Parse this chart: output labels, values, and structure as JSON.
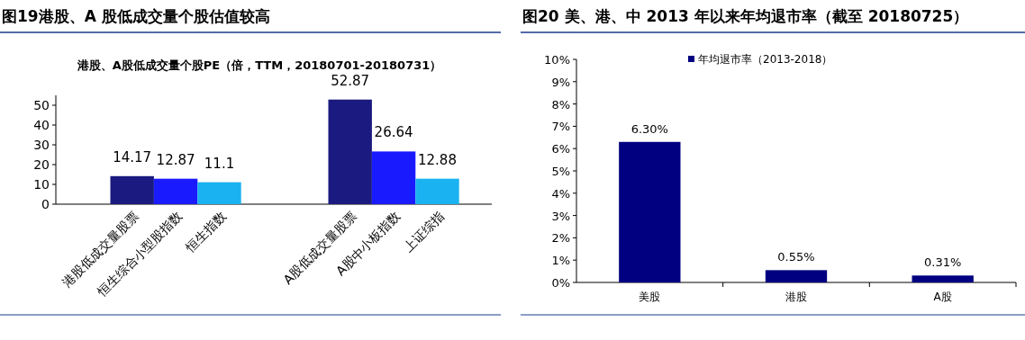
{
  "chart_data": [
    {
      "type": "bar",
      "title": "图19港股、A 股低成交量个股估值较高",
      "subtitle": "港股、A股低成交量个股PE（倍，TTM，20180701-20180731）",
      "categories": [
        "港股低成交量股票",
        "恒生综合小型股指数",
        "恒生指数",
        null,
        null,
        "A股低成交量股票",
        "A股中小板指数",
        "上证综指"
      ],
      "values": [
        14.17,
        12.87,
        11.1,
        null,
        null,
        52.87,
        26.64,
        12.88
      ],
      "colors": [
        "#1a1a80",
        "#1a1aff",
        "#1ab2f0",
        null,
        null,
        "#1a1a80",
        "#1a1aff",
        "#1ab2f0"
      ],
      "ylim": [
        0,
        55
      ],
      "yticks": [
        0,
        10,
        20,
        30,
        40,
        50
      ],
      "data_labels": true
    },
    {
      "type": "bar",
      "title": "图20 美、港、中 2013 年以来年均退市率（截至 20180725）",
      "categories": [
        "美股",
        "港股",
        "A股"
      ],
      "series": [
        {
          "name": "年均退市率（2013-2018）",
          "color": "#000080",
          "values": [
            6.3,
            0.55,
            0.31
          ],
          "value_labels": [
            "6.30%",
            "0.55%",
            "0.31%"
          ]
        }
      ],
      "ylim": [
        0,
        10
      ],
      "yticks": [
        {
          "value": 0,
          "label": "0%"
        },
        {
          "value": 1,
          "label": "1%"
        },
        {
          "value": 2,
          "label": "2%"
        },
        {
          "value": 3,
          "label": "3%"
        },
        {
          "value": 4,
          "label": "4%"
        },
        {
          "value": 5,
          "label": "5%"
        },
        {
          "value": 6,
          "label": "6%"
        },
        {
          "value": 7,
          "label": "7%"
        },
        {
          "value": 8,
          "label": "8%"
        },
        {
          "value": 9,
          "label": "9%"
        },
        {
          "value": 10,
          "label": "10%"
        }
      ],
      "legend": "top"
    }
  ]
}
